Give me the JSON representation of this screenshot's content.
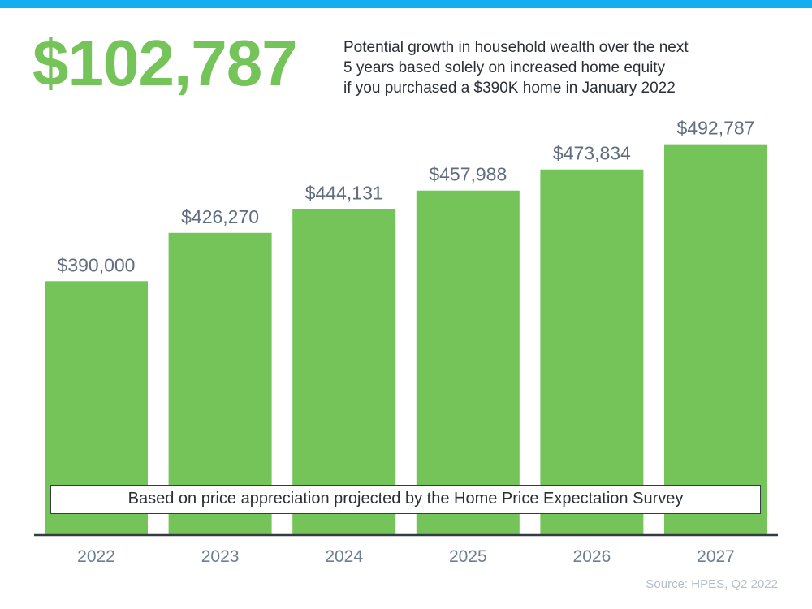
{
  "colors": {
    "top_bar": "#13aeef",
    "bars": "#75c45a",
    "headline": "#75c45a",
    "axis": "#323c44"
  },
  "headline": "$102,787",
  "subtitle": [
    "Potential growth in household wealth over the next",
    "5 years based solely on increased home equity",
    "if you purchased a $390K home in January 2022"
  ],
  "note": "Based on price appreciation projected by the Home Price Expectation Survey",
  "source": "Source: HPES, Q2 2022",
  "chart_data": {
    "type": "bar",
    "categories": [
      "2022",
      "2023",
      "2024",
      "2025",
      "2026",
      "2027"
    ],
    "values": [
      390000,
      426270,
      444131,
      457988,
      473834,
      492787
    ],
    "data_labels": [
      "$390,000",
      "$426,270",
      "$444,131",
      "$457,988",
      "$473,834",
      "$492,787"
    ],
    "title": "",
    "xlabel": "",
    "ylabel": "",
    "ylim": [
      200000,
      520000
    ],
    "y_axis_shown": false,
    "grid": false
  }
}
